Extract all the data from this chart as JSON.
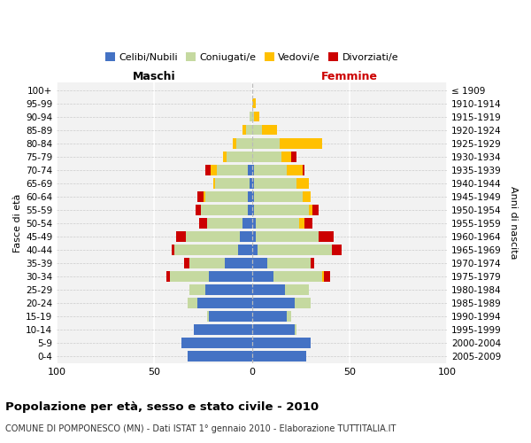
{
  "age_groups": [
    "100+",
    "95-99",
    "90-94",
    "85-89",
    "80-84",
    "75-79",
    "70-74",
    "65-69",
    "60-64",
    "55-59",
    "50-54",
    "45-49",
    "40-44",
    "35-39",
    "30-34",
    "25-29",
    "20-24",
    "15-19",
    "10-14",
    "5-9",
    "0-4"
  ],
  "birth_years": [
    "≤ 1909",
    "1910-1914",
    "1915-1919",
    "1920-1924",
    "1925-1929",
    "1930-1934",
    "1935-1939",
    "1940-1944",
    "1945-1949",
    "1950-1954",
    "1955-1959",
    "1960-1964",
    "1965-1969",
    "1970-1974",
    "1975-1979",
    "1980-1984",
    "1985-1989",
    "1990-1994",
    "1995-1999",
    "2000-2004",
    "2005-2009"
  ],
  "male_celibi": [
    0,
    0,
    0,
    0,
    0,
    0,
    2,
    1,
    2,
    2,
    5,
    6,
    7,
    14,
    22,
    24,
    28,
    22,
    30,
    36,
    33
  ],
  "male_coniugati": [
    0,
    0,
    1,
    3,
    8,
    13,
    16,
    18,
    22,
    24,
    18,
    28,
    33,
    18,
    20,
    8,
    5,
    1,
    0,
    0,
    0
  ],
  "male_vedovi": [
    0,
    0,
    0,
    2,
    2,
    2,
    3,
    1,
    1,
    0,
    0,
    0,
    0,
    0,
    0,
    0,
    0,
    0,
    0,
    0,
    0
  ],
  "male_divorziati": [
    0,
    0,
    0,
    0,
    0,
    0,
    3,
    0,
    3,
    3,
    4,
    5,
    1,
    3,
    2,
    0,
    0,
    0,
    0,
    0,
    0
  ],
  "female_nubili": [
    0,
    0,
    0,
    0,
    0,
    0,
    1,
    1,
    1,
    1,
    2,
    2,
    3,
    8,
    11,
    17,
    22,
    18,
    22,
    30,
    28
  ],
  "female_coniugate": [
    0,
    0,
    1,
    5,
    14,
    15,
    17,
    22,
    25,
    28,
    22,
    32,
    38,
    22,
    25,
    12,
    8,
    2,
    1,
    0,
    0
  ],
  "female_vedove": [
    0,
    2,
    3,
    8,
    22,
    5,
    8,
    6,
    4,
    2,
    3,
    0,
    0,
    0,
    1,
    0,
    0,
    0,
    0,
    0,
    0
  ],
  "female_divorziate": [
    0,
    0,
    0,
    0,
    0,
    3,
    1,
    0,
    0,
    3,
    4,
    8,
    5,
    2,
    3,
    0,
    0,
    0,
    0,
    0,
    0
  ],
  "color_celibi": "#4472c4",
  "color_coniugati": "#c5d9a0",
  "color_vedovi": "#ffc000",
  "color_divorziati": "#cc0000",
  "xlim": 100,
  "title": "Popolazione per età, sesso e stato civile - 2010",
  "subtitle": "COMUNE DI POMPONESCO (MN) - Dati ISTAT 1° gennaio 2010 - Elaborazione TUTTITALIA.IT",
  "ylabel_left": "Fasce di età",
  "ylabel_right": "Anni di nascita",
  "label_maschi": "Maschi",
  "label_femmine": "Femmine",
  "legend_labels": [
    "Celibi/Nubili",
    "Coniugati/e",
    "Vedovi/e",
    "Divorziati/e"
  ],
  "bg_color": "#f2f2f2",
  "fig_width": 6.0,
  "fig_height": 5.0,
  "dpi": 100
}
